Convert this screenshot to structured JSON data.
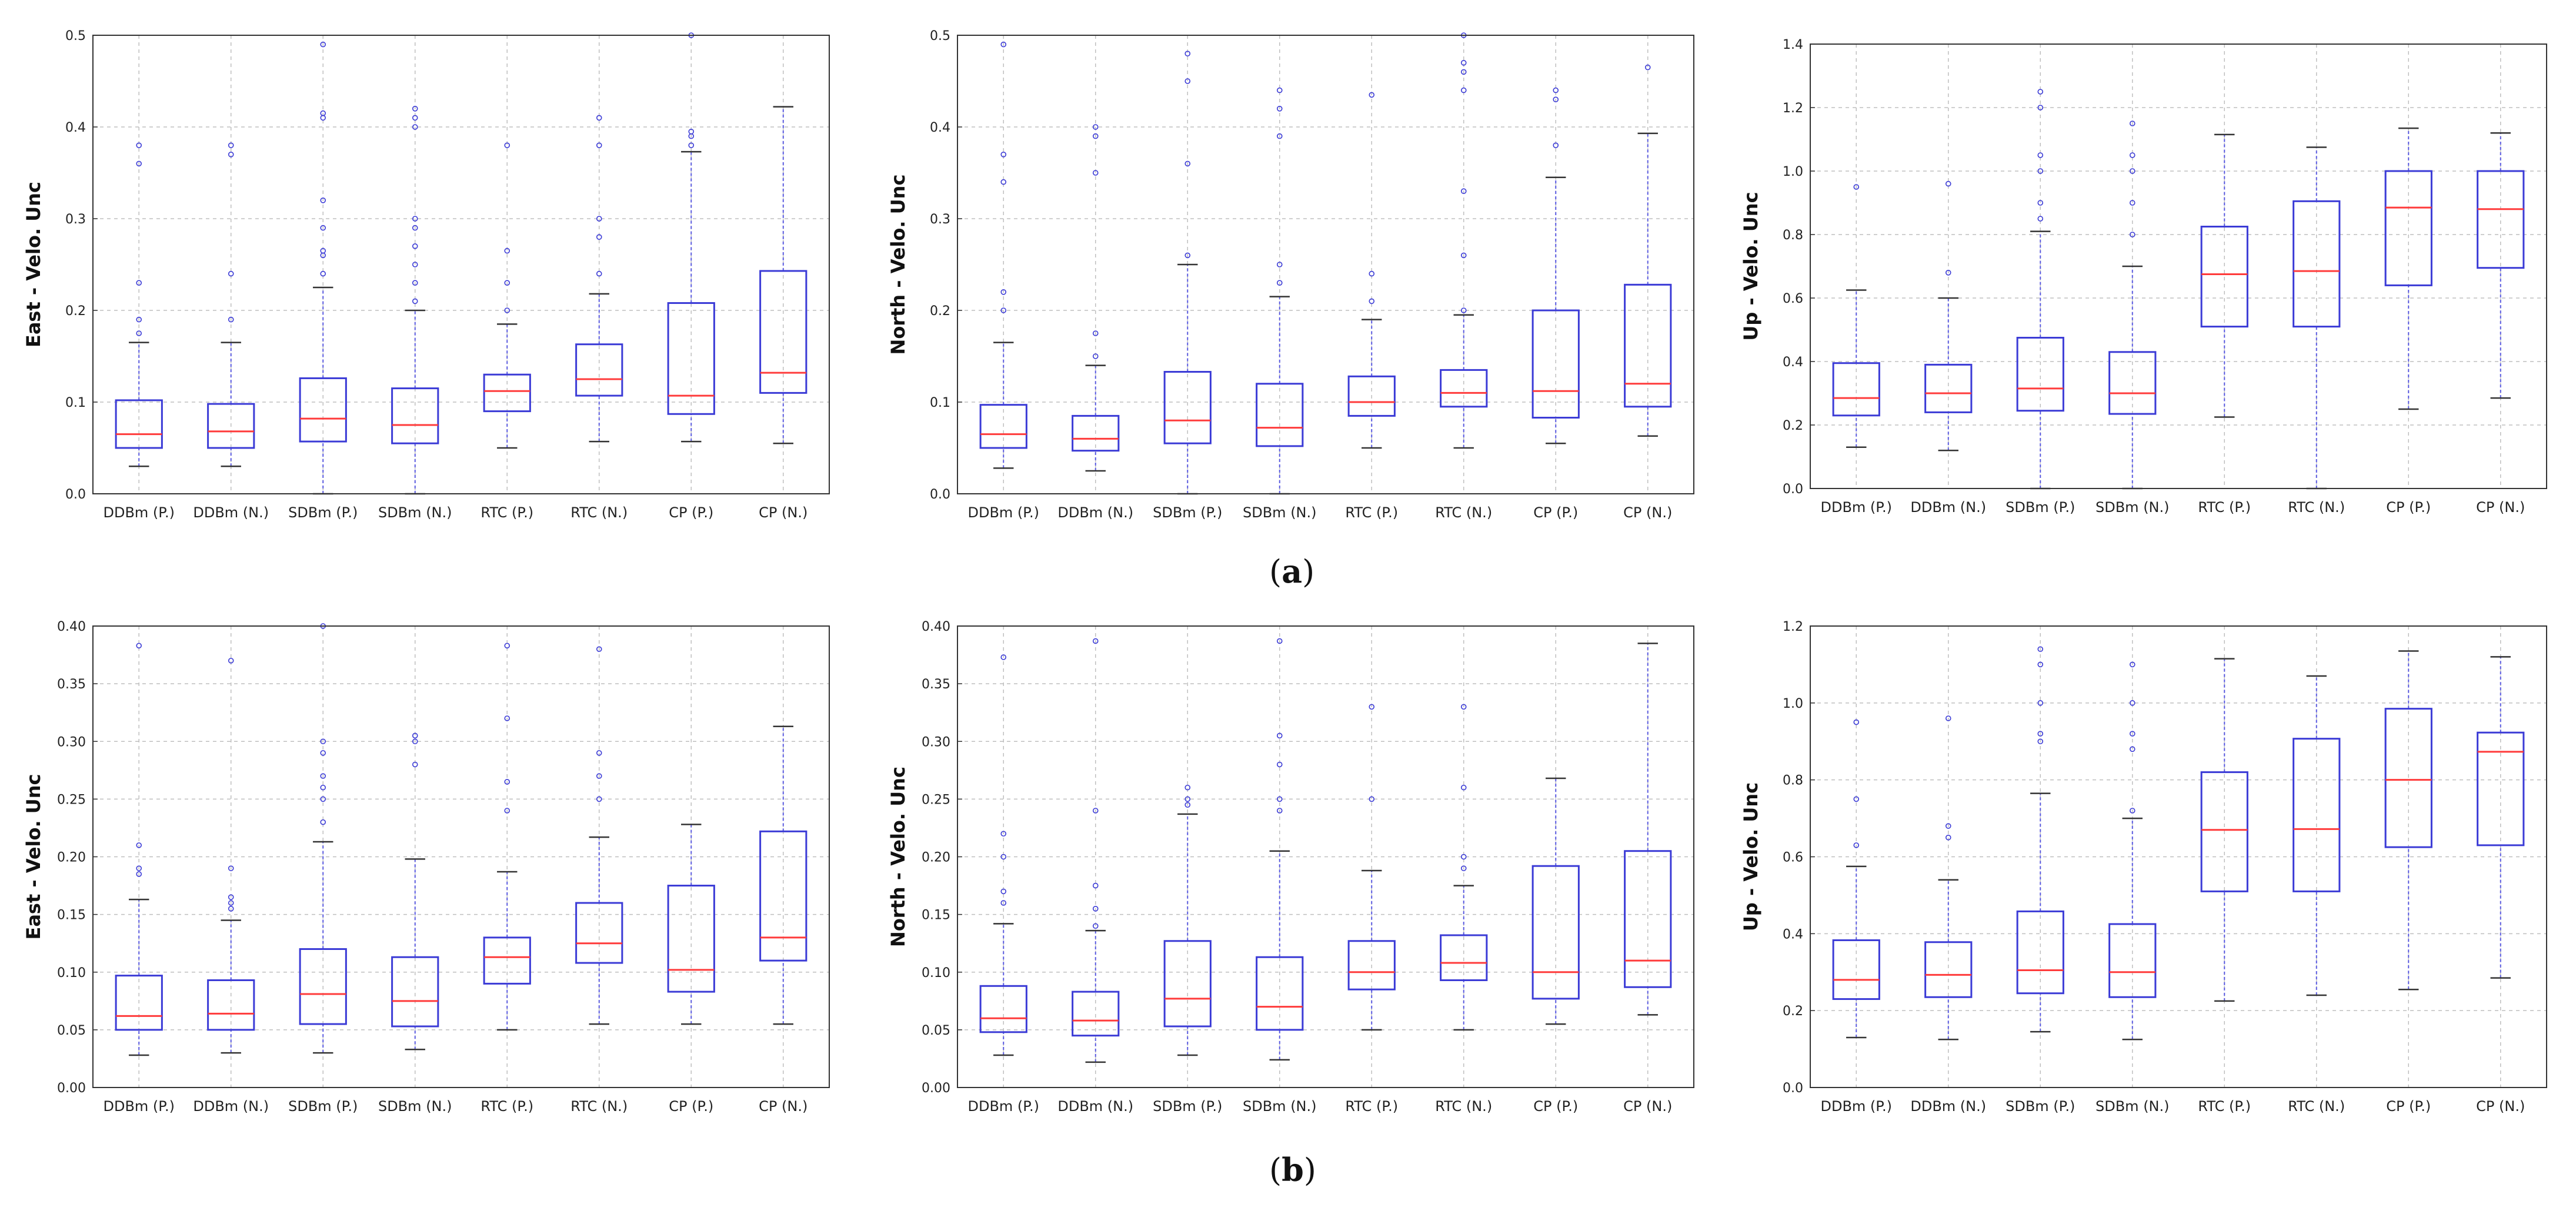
{
  "figure": {
    "panel_labels": [
      {
        "open": "(",
        "letter": "a",
        "close": ")"
      },
      {
        "open": "(",
        "letter": "b",
        "close": ")"
      }
    ],
    "colors": {
      "box": "#3b3bd6",
      "median": "#ff3b3b",
      "whisker": "#5a5ae0",
      "cap": "#333333",
      "grid": "#bfbfbf",
      "axis": "#333333"
    }
  },
  "chart_data": [
    {
      "type": "box",
      "panel": "a",
      "component": "East",
      "ylabel": "East - Velo. Unc",
      "ylim": [
        0,
        0.5
      ],
      "yticks": [
        0.0,
        0.1,
        0.2,
        0.3,
        0.4,
        0.5
      ],
      "ytick_labels": [
        "0.0",
        "0.1",
        "0.2",
        "0.3",
        "0.4",
        "0.5"
      ],
      "grid": true,
      "categories": [
        "DDBm (P.)",
        "DDBm (N.)",
        "SDBm (P.)",
        "SDBm (N.)",
        "RTC (P.)",
        "RTC (N.)",
        "CP (P.)",
        "CP (N.)"
      ],
      "boxes": [
        {
          "whislo": 0.03,
          "q1": 0.05,
          "med": 0.065,
          "q3": 0.102,
          "whishi": 0.165,
          "fliers": [
            0.175,
            0.19,
            0.23,
            0.36,
            0.38
          ]
        },
        {
          "whislo": 0.03,
          "q1": 0.05,
          "med": 0.068,
          "q3": 0.098,
          "whishi": 0.165,
          "fliers": [
            0.19,
            0.24,
            0.37,
            0.38
          ]
        },
        {
          "whislo": 0.0,
          "q1": 0.057,
          "med": 0.082,
          "q3": 0.126,
          "whishi": 0.225,
          "fliers": [
            0.24,
            0.26,
            0.265,
            0.29,
            0.32,
            0.41,
            0.415,
            0.49
          ]
        },
        {
          "whislo": 0.0,
          "q1": 0.055,
          "med": 0.075,
          "q3": 0.115,
          "whishi": 0.2,
          "fliers": [
            0.21,
            0.23,
            0.25,
            0.27,
            0.29,
            0.3,
            0.4,
            0.41,
            0.42
          ]
        },
        {
          "whislo": 0.05,
          "q1": 0.09,
          "med": 0.112,
          "q3": 0.13,
          "whishi": 0.185,
          "fliers": [
            0.2,
            0.23,
            0.265,
            0.38
          ]
        },
        {
          "whislo": 0.057,
          "q1": 0.107,
          "med": 0.125,
          "q3": 0.163,
          "whishi": 0.218,
          "fliers": [
            0.24,
            0.28,
            0.3,
            0.38,
            0.41
          ]
        },
        {
          "whislo": 0.057,
          "q1": 0.087,
          "med": 0.107,
          "q3": 0.208,
          "whishi": 0.373,
          "fliers": [
            0.38,
            0.39,
            0.395,
            0.5
          ]
        },
        {
          "whislo": 0.055,
          "q1": 0.11,
          "med": 0.132,
          "q3": 0.243,
          "whishi": 0.422,
          "fliers": []
        }
      ]
    },
    {
      "type": "box",
      "panel": "a",
      "component": "North",
      "ylabel": "North - Velo. Unc",
      "ylim": [
        0,
        0.5
      ],
      "yticks": [
        0.0,
        0.1,
        0.2,
        0.3,
        0.4,
        0.5
      ],
      "ytick_labels": [
        "0.0",
        "0.1",
        "0.2",
        "0.3",
        "0.4",
        "0.5"
      ],
      "grid": true,
      "categories": [
        "DDBm (P.)",
        "DDBm (N.)",
        "SDBm (P.)",
        "SDBm (N.)",
        "RTC (P.)",
        "RTC (N.)",
        "CP (P.)",
        "CP (N.)"
      ],
      "boxes": [
        {
          "whislo": 0.028,
          "q1": 0.05,
          "med": 0.065,
          "q3": 0.097,
          "whishi": 0.165,
          "fliers": [
            0.2,
            0.22,
            0.34,
            0.37,
            0.49
          ]
        },
        {
          "whislo": 0.025,
          "q1": 0.047,
          "med": 0.06,
          "q3": 0.085,
          "whishi": 0.14,
          "fliers": [
            0.15,
            0.175,
            0.35,
            0.39,
            0.4
          ]
        },
        {
          "whislo": 0.0,
          "q1": 0.055,
          "med": 0.08,
          "q3": 0.133,
          "whishi": 0.25,
          "fliers": [
            0.26,
            0.36,
            0.45,
            0.48
          ]
        },
        {
          "whislo": 0.0,
          "q1": 0.052,
          "med": 0.072,
          "q3": 0.12,
          "whishi": 0.215,
          "fliers": [
            0.23,
            0.25,
            0.39,
            0.42,
            0.44
          ]
        },
        {
          "whislo": 0.05,
          "q1": 0.085,
          "med": 0.1,
          "q3": 0.128,
          "whishi": 0.19,
          "fliers": [
            0.21,
            0.24,
            0.435
          ]
        },
        {
          "whislo": 0.05,
          "q1": 0.095,
          "med": 0.11,
          "q3": 0.135,
          "whishi": 0.195,
          "fliers": [
            0.2,
            0.26,
            0.33,
            0.44,
            0.46,
            0.47,
            0.5
          ]
        },
        {
          "whislo": 0.055,
          "q1": 0.083,
          "med": 0.112,
          "q3": 0.2,
          "whishi": 0.345,
          "fliers": [
            0.38,
            0.43,
            0.44
          ]
        },
        {
          "whislo": 0.063,
          "q1": 0.095,
          "med": 0.12,
          "q3": 0.228,
          "whishi": 0.393,
          "fliers": [
            0.465
          ]
        }
      ]
    },
    {
      "type": "box",
      "panel": "a",
      "component": "Up",
      "ylabel": "Up - Velo. Unc",
      "ylim": [
        0,
        1.4
      ],
      "yticks": [
        0.0,
        0.2,
        0.4,
        0.6,
        0.8,
        1.0,
        1.2,
        1.4
      ],
      "ytick_labels": [
        "0.0",
        "0.2",
        "0.4",
        "0.6",
        "0.8",
        "1.0",
        "1.2",
        "1.4"
      ],
      "grid": true,
      "categories": [
        "DDBm (P.)",
        "DDBm (N.)",
        "SDBm (P.)",
        "SDBm (N.)",
        "RTC (P.)",
        "RTC (N.)",
        "CP (P.)",
        "CP (N.)"
      ],
      "boxes": [
        {
          "whislo": 0.13,
          "q1": 0.23,
          "med": 0.285,
          "q3": 0.395,
          "whishi": 0.625,
          "fliers": [
            0.95
          ]
        },
        {
          "whislo": 0.12,
          "q1": 0.24,
          "med": 0.3,
          "q3": 0.39,
          "whishi": 0.6,
          "fliers": [
            0.68,
            0.96
          ]
        },
        {
          "whislo": 0.0,
          "q1": 0.245,
          "med": 0.315,
          "q3": 0.475,
          "whishi": 0.81,
          "fliers": [
            0.85,
            0.9,
            1.0,
            1.05,
            1.2,
            1.25
          ]
        },
        {
          "whislo": 0.0,
          "q1": 0.235,
          "med": 0.3,
          "q3": 0.43,
          "whishi": 0.7,
          "fliers": [
            0.8,
            0.9,
            1.0,
            1.05,
            1.15
          ]
        },
        {
          "whislo": 0.225,
          "q1": 0.51,
          "med": 0.675,
          "q3": 0.825,
          "whishi": 1.115,
          "fliers": []
        },
        {
          "whislo": 0.0,
          "q1": 0.51,
          "med": 0.685,
          "q3": 0.905,
          "whishi": 1.075,
          "fliers": []
        },
        {
          "whislo": 0.25,
          "q1": 0.64,
          "med": 0.885,
          "q3": 1.0,
          "whishi": 1.135,
          "fliers": []
        },
        {
          "whislo": 0.285,
          "q1": 0.695,
          "med": 0.88,
          "q3": 1.0,
          "whishi": 1.12,
          "fliers": []
        }
      ]
    },
    {
      "type": "box",
      "panel": "b",
      "component": "East",
      "ylabel": "East - Velo. Unc",
      "ylim": [
        0,
        0.4
      ],
      "yticks": [
        0.0,
        0.05,
        0.1,
        0.15,
        0.2,
        0.25,
        0.3,
        0.35,
        0.4
      ],
      "ytick_labels": [
        "0.00",
        "0.05",
        "0.10",
        "0.15",
        "0.20",
        "0.25",
        "0.30",
        "0.35",
        "0.40"
      ],
      "grid": true,
      "categories": [
        "DDBm (P.)",
        "DDBm (N.)",
        "SDBm (P.)",
        "SDBm (N.)",
        "RTC (P.)",
        "RTC (N.)",
        "CP (P.)",
        "CP (N.)"
      ],
      "boxes": [
        {
          "whislo": 0.028,
          "q1": 0.05,
          "med": 0.062,
          "q3": 0.097,
          "whishi": 0.163,
          "fliers": [
            0.185,
            0.19,
            0.21,
            0.383
          ]
        },
        {
          "whislo": 0.03,
          "q1": 0.05,
          "med": 0.064,
          "q3": 0.093,
          "whishi": 0.145,
          "fliers": [
            0.155,
            0.16,
            0.165,
            0.19,
            0.37
          ]
        },
        {
          "whislo": 0.03,
          "q1": 0.055,
          "med": 0.081,
          "q3": 0.12,
          "whishi": 0.213,
          "fliers": [
            0.23,
            0.25,
            0.26,
            0.27,
            0.29,
            0.3,
            0.4
          ]
        },
        {
          "whislo": 0.033,
          "q1": 0.053,
          "med": 0.075,
          "q3": 0.113,
          "whishi": 0.198,
          "fliers": [
            0.28,
            0.3,
            0.305
          ]
        },
        {
          "whislo": 0.05,
          "q1": 0.09,
          "med": 0.113,
          "q3": 0.13,
          "whishi": 0.187,
          "fliers": [
            0.24,
            0.265,
            0.32,
            0.383
          ]
        },
        {
          "whislo": 0.055,
          "q1": 0.108,
          "med": 0.125,
          "q3": 0.16,
          "whishi": 0.217,
          "fliers": [
            0.25,
            0.27,
            0.29,
            0.38
          ]
        },
        {
          "whislo": 0.055,
          "q1": 0.083,
          "med": 0.102,
          "q3": 0.175,
          "whishi": 0.228,
          "fliers": []
        },
        {
          "whislo": 0.055,
          "q1": 0.11,
          "med": 0.13,
          "q3": 0.222,
          "whishi": 0.313,
          "fliers": []
        }
      ]
    },
    {
      "type": "box",
      "panel": "b",
      "component": "North",
      "ylabel": "North - Velo. Unc",
      "ylim": [
        0,
        0.4
      ],
      "yticks": [
        0.0,
        0.05,
        0.1,
        0.15,
        0.2,
        0.25,
        0.3,
        0.35,
        0.4
      ],
      "ytick_labels": [
        "0.00",
        "0.05",
        "0.10",
        "0.15",
        "0.20",
        "0.25",
        "0.30",
        "0.35",
        "0.40"
      ],
      "grid": true,
      "categories": [
        "DDBm (P.)",
        "DDBm (N.)",
        "SDBm (P.)",
        "SDBm (N.)",
        "RTC (P.)",
        "RTC (N.)",
        "CP (P.)",
        "CP (N.)"
      ],
      "boxes": [
        {
          "whislo": 0.028,
          "q1": 0.048,
          "med": 0.06,
          "q3": 0.088,
          "whishi": 0.142,
          "fliers": [
            0.16,
            0.17,
            0.2,
            0.22,
            0.373
          ]
        },
        {
          "whislo": 0.022,
          "q1": 0.045,
          "med": 0.058,
          "q3": 0.083,
          "whishi": 0.136,
          "fliers": [
            0.14,
            0.155,
            0.175,
            0.24,
            0.387
          ]
        },
        {
          "whislo": 0.028,
          "q1": 0.053,
          "med": 0.077,
          "q3": 0.127,
          "whishi": 0.237,
          "fliers": [
            0.245,
            0.25,
            0.26
          ]
        },
        {
          "whislo": 0.024,
          "q1": 0.05,
          "med": 0.07,
          "q3": 0.113,
          "whishi": 0.205,
          "fliers": [
            0.24,
            0.25,
            0.28,
            0.305,
            0.387
          ]
        },
        {
          "whislo": 0.05,
          "q1": 0.085,
          "med": 0.1,
          "q3": 0.127,
          "whishi": 0.188,
          "fliers": [
            0.25,
            0.33
          ]
        },
        {
          "whislo": 0.05,
          "q1": 0.093,
          "med": 0.108,
          "q3": 0.132,
          "whishi": 0.175,
          "fliers": [
            0.19,
            0.2,
            0.26,
            0.33
          ]
        },
        {
          "whislo": 0.055,
          "q1": 0.077,
          "med": 0.1,
          "q3": 0.192,
          "whishi": 0.268,
          "fliers": []
        },
        {
          "whislo": 0.063,
          "q1": 0.087,
          "med": 0.11,
          "q3": 0.205,
          "whishi": 0.385,
          "fliers": []
        }
      ]
    },
    {
      "type": "box",
      "panel": "b",
      "component": "Up",
      "ylabel": "Up - Velo. Unc",
      "ylim": [
        0,
        1.2
      ],
      "yticks": [
        0.0,
        0.2,
        0.4,
        0.6,
        0.8,
        1.0,
        1.2
      ],
      "ytick_labels": [
        "0.0",
        "0.2",
        "0.4",
        "0.6",
        "0.8",
        "1.0",
        "1.2"
      ],
      "grid": true,
      "categories": [
        "DDBm (P.)",
        "DDBm (N.)",
        "SDBm (P.)",
        "SDBm (N.)",
        "RTC (P.)",
        "RTC (N.)",
        "CP (P.)",
        "CP (N.)"
      ],
      "boxes": [
        {
          "whislo": 0.13,
          "q1": 0.23,
          "med": 0.28,
          "q3": 0.383,
          "whishi": 0.575,
          "fliers": [
            0.63,
            0.75,
            0.95
          ]
        },
        {
          "whislo": 0.125,
          "q1": 0.235,
          "med": 0.293,
          "q3": 0.378,
          "whishi": 0.54,
          "fliers": [
            0.65,
            0.68,
            0.96
          ]
        },
        {
          "whislo": 0.145,
          "q1": 0.245,
          "med": 0.305,
          "q3": 0.458,
          "whishi": 0.765,
          "fliers": [
            0.9,
            0.92,
            1.0,
            1.1,
            1.14
          ]
        },
        {
          "whislo": 0.125,
          "q1": 0.235,
          "med": 0.3,
          "q3": 0.425,
          "whishi": 0.7,
          "fliers": [
            0.72,
            0.88,
            0.92,
            1.0,
            1.1
          ]
        },
        {
          "whislo": 0.225,
          "q1": 0.51,
          "med": 0.67,
          "q3": 0.82,
          "whishi": 1.115,
          "fliers": []
        },
        {
          "whislo": 0.24,
          "q1": 0.51,
          "med": 0.672,
          "q3": 0.907,
          "whishi": 1.07,
          "fliers": []
        },
        {
          "whislo": 0.255,
          "q1": 0.625,
          "med": 0.8,
          "q3": 0.985,
          "whishi": 1.135,
          "fliers": []
        },
        {
          "whislo": 0.285,
          "q1": 0.63,
          "med": 0.873,
          "q3": 0.923,
          "whishi": 1.12,
          "fliers": []
        }
      ]
    }
  ]
}
